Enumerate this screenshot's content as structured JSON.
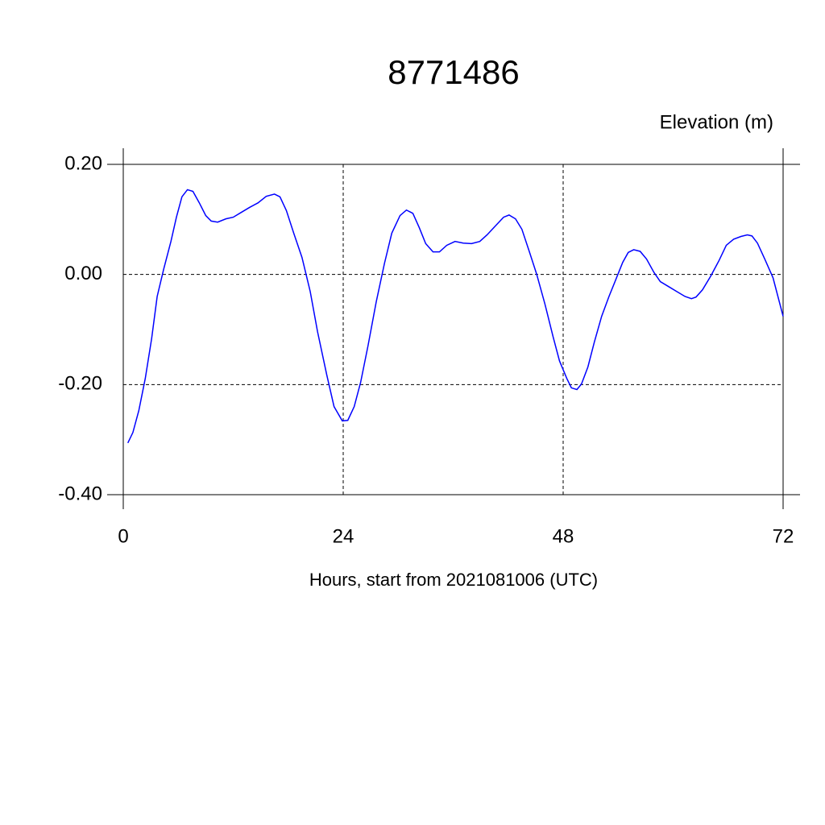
{
  "chart_data": {
    "type": "line",
    "title": "8771486",
    "subtitle": "Elevation (m)",
    "x_label": "Hours, start from 2021081006 (UTC)",
    "xlim": [
      0,
      72
    ],
    "xticks": [
      0,
      24,
      48,
      72
    ],
    "ylim": [
      -0.4,
      0.2
    ],
    "yticks": [
      {
        "value": -0.4,
        "label": "-0.40"
      },
      {
        "value": -0.2,
        "label": "-0.20"
      },
      {
        "value": 0,
        "label": "0.00"
      },
      {
        "value": 0.2,
        "label": "0.20"
      }
    ],
    "grid": true,
    "series": [
      {
        "color": "#0000ff",
        "x": [
          0.5,
          1.05,
          1.7,
          2.4,
          3.1,
          3.7,
          4.4,
          5.2,
          5.8,
          6.4,
          7.0,
          7.6,
          8.3,
          9.0,
          9.6,
          10.3,
          11.2,
          12.0,
          12.9,
          13.8,
          14.7,
          15.6,
          16.5,
          17.1,
          17.8,
          18.6,
          19.5,
          20.4,
          21.2,
          22.2,
          23.0,
          23.9,
          24.5,
          25.2,
          25.9,
          26.7,
          27.6,
          28.5,
          29.3,
          30.2,
          30.9,
          31.6,
          32.3,
          33.0,
          33.8,
          34.5,
          35.3,
          36.2,
          37.1,
          38.0,
          38.9,
          39.7,
          40.6,
          41.5,
          42.1,
          42.8,
          43.5,
          44.3,
          45.1,
          46.0,
          46.9,
          47.6,
          48.4,
          48.9,
          49.5,
          50.0,
          50.7,
          51.4,
          52.2,
          53.0,
          53.8,
          54.5,
          55.1,
          55.7,
          56.4,
          57.1,
          57.9,
          58.6,
          59.5,
          60.4,
          61.3,
          62.0,
          62.5,
          63.2,
          64.1,
          65.0,
          65.8,
          66.6,
          67.4,
          68.1,
          68.6,
          69.2,
          70.0,
          70.9,
          72.0
        ],
        "values": [
          -0.306,
          -0.287,
          -0.247,
          -0.189,
          -0.116,
          -0.04,
          0.009,
          0.06,
          0.104,
          0.141,
          0.154,
          0.151,
          0.13,
          0.107,
          0.097,
          0.095,
          0.101,
          0.104,
          0.113,
          0.122,
          0.13,
          0.142,
          0.146,
          0.141,
          0.116,
          0.075,
          0.031,
          -0.031,
          -0.104,
          -0.182,
          -0.24,
          -0.266,
          -0.265,
          -0.24,
          -0.196,
          -0.13,
          -0.05,
          0.02,
          0.075,
          0.107,
          0.117,
          0.111,
          0.085,
          0.056,
          0.041,
          0.041,
          0.053,
          0.06,
          0.057,
          0.056,
          0.06,
          0.072,
          0.088,
          0.104,
          0.108,
          0.101,
          0.082,
          0.042,
          0.001,
          -0.053,
          -0.113,
          -0.157,
          -0.189,
          -0.206,
          -0.209,
          -0.199,
          -0.168,
          -0.123,
          -0.076,
          -0.04,
          -0.007,
          0.022,
          0.04,
          0.045,
          0.042,
          0.028,
          0.004,
          -0.013,
          -0.022,
          -0.031,
          -0.04,
          -0.044,
          -0.041,
          -0.028,
          -0.003,
          0.025,
          0.053,
          0.064,
          0.069,
          0.072,
          0.07,
          0.057,
          0.028,
          -0.006,
          -0.076
        ]
      }
    ]
  }
}
